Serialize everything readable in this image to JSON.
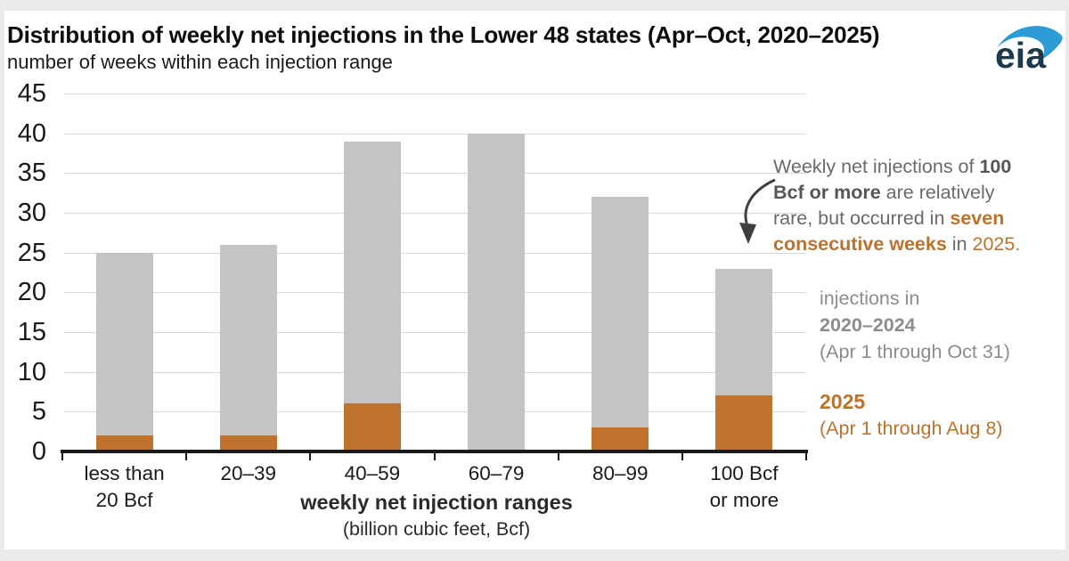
{
  "header": {
    "title": "Distribution of weekly net injections in the Lower 48 states (Apr–Oct, 2020–2025)",
    "subtitle": "number of weeks within each injection range",
    "logo_text": "eia"
  },
  "chart_data": {
    "type": "bar",
    "stacked": true,
    "title": "Distribution of weekly net injections in the Lower 48 states (Apr–Oct, 2020–2025)",
    "subtitle": "number of weeks within each injection range",
    "categories": [
      "less than 20 Bcf",
      "20–39",
      "40–59",
      "60–79",
      "80–99",
      "100 Bcf or more"
    ],
    "category_label_lines": [
      [
        "less than",
        "20 Bcf"
      ],
      [
        "20–39"
      ],
      [
        "40–59"
      ],
      [
        "60–79"
      ],
      [
        "80–99"
      ],
      [
        "100 Bcf",
        "or more"
      ]
    ],
    "series": [
      {
        "name": "2025 (Apr 1 through Aug 8)",
        "color": "#bf732c",
        "values": [
          2,
          2,
          6,
          0,
          3,
          7
        ]
      },
      {
        "name": "injections in 2020–2024 (Apr 1 through Oct 31)",
        "color": "#c4c4c4",
        "values": [
          23,
          24,
          33,
          40,
          29,
          16
        ]
      }
    ],
    "stack_totals": [
      25,
      26,
      39,
      40,
      32,
      23
    ],
    "ylim": [
      0,
      45
    ],
    "ytick_step": 5,
    "grid": true,
    "legend_position": "right",
    "xlabel": "weekly net injection ranges",
    "xlabel_sub": "(billion cubic feet, Bcf)"
  },
  "annotation": {
    "segments": [
      {
        "t": "Weekly net injections of ",
        "s": "g"
      },
      {
        "t": "100",
        "s": "d"
      },
      {
        "t": "\n"
      },
      {
        "t": "Bcf or more",
        "s": "d"
      },
      {
        "t": " are relatively",
        "s": "g"
      },
      {
        "t": "\n"
      },
      {
        "t": "rare, but occurred in ",
        "s": "g"
      },
      {
        "t": "seven",
        "s": "o"
      },
      {
        "t": "\n"
      },
      {
        "t": "consecutive weeks",
        "s": "o"
      },
      {
        "t": " in ",
        "s": "g"
      },
      {
        "t": "2025.",
        "s": "or"
      }
    ]
  },
  "legends": {
    "gray": {
      "line1": "injections in",
      "line2": "2020–2024",
      "line3": "(Apr 1 through Oct 31)"
    },
    "orange": {
      "line1": "2025",
      "line2": "(Apr 1 through Aug 8)"
    }
  },
  "axis_title": {
    "main": "weekly net injection ranges",
    "sub": "(billion cubic feet, Bcf)"
  },
  "colors": {
    "bar_gray": "#c4c4c4",
    "bar_orange": "#bf732c",
    "orange_text": "#bd722b",
    "gray_text": "#6a6a6a",
    "legend_gray_text": "#8c8c8c",
    "gridline": "#d9d9d9",
    "axis": "#1a1a1a",
    "logo_blue": "#2d9bd5",
    "logo_dark": "#1c3a4a",
    "arrow": "#3f3f3f"
  }
}
